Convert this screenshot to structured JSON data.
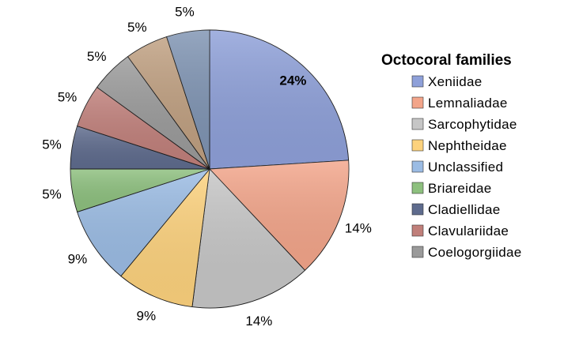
{
  "chart_data": {
    "type": "pie",
    "legend_title": "Octocoral families",
    "legend_position": "right",
    "start_angle": "12 o'clock, clockwise",
    "slices": [
      {
        "label": "Xeniidae",
        "value": 24,
        "value_label": "24%",
        "color": "#8EA0D9",
        "label_bold": true
      },
      {
        "label": "Lemnaliadae",
        "value": 14,
        "value_label": "14%",
        "color": "#F3A58A",
        "label_bold": false
      },
      {
        "label": "Sarcophytidae",
        "value": 14,
        "value_label": "14%",
        "color": "#C6C6C6",
        "label_bold": false
      },
      {
        "label": "Nephtheidae",
        "value": 9,
        "value_label": "9%",
        "color": "#FDD27D",
        "label_bold": false
      },
      {
        "label": "Unclassified",
        "value": 9,
        "value_label": "9%",
        "color": "#9BBCE4",
        "label_bold": false
      },
      {
        "label": "Briareidae",
        "value": 5,
        "value_label": "5%",
        "color": "#8DC07E",
        "label_bold": false
      },
      {
        "label": "Cladiellidae",
        "value": 5,
        "value_label": "5%",
        "color": "#5E6B8D",
        "label_bold": false
      },
      {
        "label": "Clavulariidae",
        "value": 5,
        "value_label": "5%",
        "color": "#C07F7A",
        "label_bold": false
      },
      {
        "label": "Coelogorgiidae",
        "value": 5,
        "value_label": "5%",
        "color": "#9A9A9A",
        "label_bold": false
      },
      {
        "label": "",
        "value": 5,
        "value_label": "5%",
        "color": "#BF9F80",
        "label_bold": false
      },
      {
        "label": "",
        "value": 5,
        "value_label": "5%",
        "color": "#7E93B2",
        "label_bold": false
      }
    ]
  }
}
